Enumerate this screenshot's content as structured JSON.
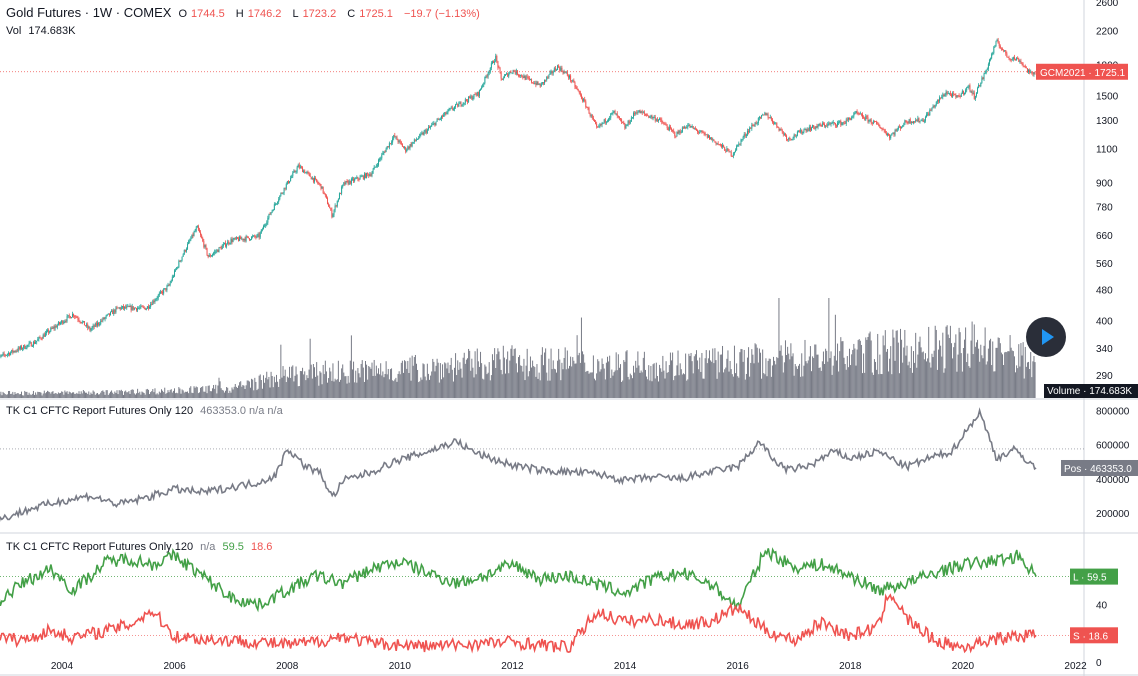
{
  "header": {
    "symbol": "Gold Futures · 1W · COMEX",
    "o_label": "O",
    "o_val": "1744.5",
    "h_label": "H",
    "h_val": "1746.2",
    "l_label": "L",
    "l_val": "1723.2",
    "c_label": "C",
    "c_val": "1725.1",
    "change": "−19.7 (−1.13%)",
    "vol_label": "Vol",
    "vol_val": "174.683K"
  },
  "panes": {
    "pos_title": "TK C1 CFTC Report Futures Only 120",
    "pos_values": "463353.0  n/a  n/a",
    "ls_title": "TK C1 CFTC Report Futures Only 120",
    "ls_na": "n/a",
    "ls_long": "59.5",
    "ls_short": "18.6"
  },
  "badges": {
    "price": "GCM2021 · 1725.1",
    "volume": "Volume · 174.683K",
    "pos": "Pos · 463353.0",
    "long": "L · 59.5",
    "short": "S · 18.6"
  },
  "colors": {
    "up": "#26a69a",
    "down": "#ef5350",
    "volume": "#787b86",
    "pos_line": "#787b86",
    "long_line": "#43a047",
    "short_line": "#ef5350",
    "badge_volume": "#131722"
  },
  "play_icon": "play-icon",
  "chart_data": [
    {
      "type": "candlestick",
      "title": "Gold Futures · 1W · COMEX",
      "scale": "log",
      "y_ticks": [
        290,
        340,
        400,
        480,
        560,
        660,
        780,
        900,
        1100,
        1300,
        1500,
        1800,
        2200,
        2600
      ],
      "x_ticks": [
        "2004",
        "2006",
        "2008",
        "2010",
        "2012",
        "2014",
        "2016",
        "2018",
        "2020",
        "2022"
      ],
      "last_price": 1725.1,
      "price_path": [
        [
          2002.8,
          318
        ],
        [
          2003.5,
          350
        ],
        [
          2004.2,
          415
        ],
        [
          2004.5,
          378
        ],
        [
          2005.0,
          430
        ],
        [
          2005.5,
          430
        ],
        [
          2005.9,
          490
        ],
        [
          2006.4,
          690
        ],
        [
          2006.6,
          580
        ],
        [
          2007.0,
          640
        ],
        [
          2007.5,
          655
        ],
        [
          2008.2,
          990
        ],
        [
          2008.6,
          880
        ],
        [
          2008.8,
          740
        ],
        [
          2009.0,
          890
        ],
        [
          2009.5,
          950
        ],
        [
          2009.9,
          1180
        ],
        [
          2010.1,
          1090
        ],
        [
          2010.5,
          1230
        ],
        [
          2010.9,
          1380
        ],
        [
          2011.4,
          1520
        ],
        [
          2011.7,
          1880
        ],
        [
          2011.8,
          1650
        ],
        [
          2012.0,
          1740
        ],
        [
          2012.3,
          1640
        ],
        [
          2012.5,
          1590
        ],
        [
          2012.8,
          1780
        ],
        [
          2013.0,
          1680
        ],
        [
          2013.3,
          1420
        ],
        [
          2013.5,
          1230
        ],
        [
          2013.8,
          1360
        ],
        [
          2014.0,
          1240
        ],
        [
          2014.2,
          1370
        ],
        [
          2014.6,
          1300
        ],
        [
          2014.9,
          1190
        ],
        [
          2015.1,
          1260
        ],
        [
          2015.5,
          1170
        ],
        [
          2015.9,
          1060
        ],
        [
          2016.2,
          1230
        ],
        [
          2016.5,
          1350
        ],
        [
          2016.9,
          1160
        ],
        [
          2017.2,
          1230
        ],
        [
          2017.5,
          1260
        ],
        [
          2017.9,
          1280
        ],
        [
          2018.1,
          1350
        ],
        [
          2018.5,
          1260
        ],
        [
          2018.7,
          1180
        ],
        [
          2019.0,
          1290
        ],
        [
          2019.3,
          1300
        ],
        [
          2019.5,
          1420
        ],
        [
          2019.7,
          1530
        ],
        [
          2019.9,
          1480
        ],
        [
          2020.1,
          1580
        ],
        [
          2020.2,
          1490
        ],
        [
          2020.4,
          1720
        ],
        [
          2020.6,
          2060
        ],
        [
          2020.8,
          1880
        ],
        [
          2021.0,
          1850
        ],
        [
          2021.2,
          1700
        ],
        [
          2021.3,
          1725
        ]
      ]
    },
    {
      "type": "bar",
      "series": [
        {
          "name": "Volume",
          "values": []
        }
      ],
      "volume_path": [
        [
          2002.8,
          25
        ],
        [
          2005.0,
          30
        ],
        [
          2007.0,
          50
        ],
        [
          2008.0,
          120
        ],
        [
          2010.0,
          150
        ],
        [
          2012.0,
          190
        ],
        [
          2014.0,
          170
        ],
        [
          2016.0,
          190
        ],
        [
          2018.0,
          230
        ],
        [
          2019.5,
          260
        ],
        [
          2020.2,
          280
        ],
        [
          2021.0,
          220
        ],
        [
          2021.3,
          175
        ]
      ],
      "last_value": "174.683K"
    },
    {
      "type": "line",
      "title": "TK C1 CFTC Report Futures Only 120",
      "y_ticks": [
        200000,
        400000,
        600000,
        800000
      ],
      "ylim": [
        100000,
        850000
      ],
      "series": [
        {
          "name": "Pos",
          "x": [
            2002.8,
            2003.5,
            2004.0,
            2004.5,
            2005.0,
            2005.5,
            2006.0,
            2006.5,
            2007.0,
            2007.5,
            2007.8,
            2008.0,
            2008.3,
            2008.6,
            2008.8,
            2009.0,
            2009.5,
            2009.9,
            2010.5,
            2011.0,
            2011.3,
            2011.6,
            2012.0,
            2012.5,
            2013.0,
            2013.5,
            2014.0,
            2014.5,
            2015.0,
            2015.5,
            2016.0,
            2016.4,
            2016.6,
            2016.9,
            2017.3,
            2017.7,
            2018.0,
            2018.5,
            2019.0,
            2019.4,
            2019.8,
            2020.1,
            2020.3,
            2020.6,
            2020.9,
            2021.1,
            2021.3
          ],
          "values": [
            150000,
            230000,
            270000,
            300000,
            250000,
            290000,
            340000,
            320000,
            350000,
            380000,
            420000,
            580000,
            480000,
            430000,
            290000,
            390000,
            440000,
            500000,
            560000,
            620000,
            560000,
            520000,
            480000,
            450000,
            440000,
            430000,
            390000,
            410000,
            400000,
            440000,
            470000,
            620000,
            520000,
            450000,
            480000,
            560000,
            520000,
            560000,
            470000,
            520000,
            560000,
            700000,
            790000,
            520000,
            570000,
            520000,
            463353
          ]
        }
      ],
      "last_value": 463353.0
    },
    {
      "type": "line",
      "title": "TK C1 CFTC Report Futures Only 120",
      "y_ticks": [
        0,
        40
      ],
      "ylim": [
        0,
        85
      ],
      "series": [
        {
          "name": "L",
          "x": [
            2002.8,
            2003.3,
            2003.8,
            2004.2,
            2004.8,
            2005.2,
            2005.6,
            2006.0,
            2006.5,
            2007.0,
            2007.5,
            2008.0,
            2008.5,
            2009.0,
            2009.5,
            2010.0,
            2010.5,
            2011.0,
            2011.5,
            2012.0,
            2012.5,
            2013.0,
            2013.5,
            2014.0,
            2014.5,
            2015.0,
            2015.5,
            2016.0,
            2016.5,
            2017.0,
            2017.5,
            2018.0,
            2018.5,
            2019.0,
            2019.5,
            2020.0,
            2020.5,
            2021.0,
            2021.3
          ],
          "values": [
            40,
            55,
            65,
            50,
            70,
            72,
            68,
            74,
            60,
            45,
            40,
            50,
            60,
            55,
            65,
            70,
            62,
            55,
            60,
            68,
            58,
            60,
            54,
            48,
            58,
            62,
            55,
            38,
            78,
            66,
            68,
            60,
            50,
            55,
            62,
            68,
            70,
            74,
            59.5
          ]
        },
        {
          "name": "S",
          "x": [
            2002.8,
            2003.3,
            2003.8,
            2004.2,
            2004.8,
            2005.2,
            2005.6,
            2006.0,
            2006.5,
            2007.0,
            2007.5,
            2008.0,
            2008.5,
            2009.0,
            2009.5,
            2010.0,
            2010.5,
            2011.0,
            2011.5,
            2012.0,
            2012.5,
            2013.0,
            2013.5,
            2014.0,
            2014.5,
            2015.0,
            2015.5,
            2016.0,
            2016.5,
            2017.0,
            2017.5,
            2018.0,
            2018.5,
            2018.7,
            2019.0,
            2019.5,
            2020.0,
            2020.5,
            2021.0,
            2021.3
          ],
          "values": [
            18,
            15,
            22,
            17,
            22,
            26,
            36,
            18,
            16,
            15,
            14,
            12,
            14,
            18,
            13,
            12,
            11,
            12,
            13,
            14,
            12,
            10,
            35,
            28,
            30,
            26,
            28,
            38,
            22,
            15,
            28,
            18,
            25,
            50,
            30,
            15,
            10,
            16,
            18,
            18.6
          ]
        }
      ],
      "last_long": 59.5,
      "last_short": 18.6
    }
  ]
}
